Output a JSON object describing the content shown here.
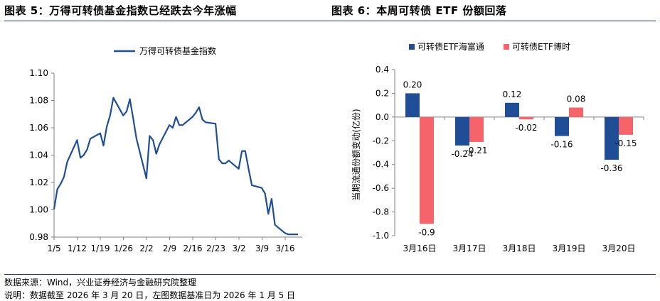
{
  "titles": {
    "left": "图表 5：万得可转债基金指数已经跌去今年涨幅",
    "right": "图表 6：本周可转债 ETF 份额回落"
  },
  "footer": {
    "source": "数据来源：Wind，兴业证券经济与金融研究院整理",
    "note": "说明：数据截至 2026 年 3 月 20 日，左图数据基准日为 2026 年 1 月 5 日"
  },
  "colors": {
    "line": "#1f4e96",
    "bar1": "#1f4e96",
    "bar2": "#f4646a",
    "rule": "#1f3864"
  },
  "chart_data": [
    {
      "type": "line",
      "title": "",
      "legend": [
        "万得可转债基金指数"
      ],
      "xlabel": "",
      "ylabel": "",
      "ylim": [
        0.98,
        1.1
      ],
      "yticks": [
        0.98,
        1.0,
        1.02,
        1.04,
        1.06,
        1.08,
        1.1
      ],
      "ytick_labels": [
        "0.98",
        "1.00",
        "1.02",
        "1.04",
        "1.06",
        "1.08",
        "1.10"
      ],
      "xticks": [
        "1/5",
        "1/12",
        "1/19",
        "1/26",
        "2/2",
        "2/9",
        "2/16",
        "2/23",
        "3/2",
        "3/9",
        "3/16"
      ],
      "x_start": "1/5",
      "x_end": "3/20",
      "series": [
        {
          "name": "万得可转债基金指数",
          "x": [
            0,
            1,
            2,
            3,
            4,
            7,
            8,
            9,
            10,
            11,
            14,
            15,
            16,
            17,
            18,
            21,
            22,
            23,
            24,
            25,
            28,
            29,
            30,
            31,
            32,
            35,
            36,
            37,
            38,
            39,
            42,
            43,
            44,
            45,
            46,
            49,
            50,
            51,
            52,
            53,
            56,
            57,
            58,
            59,
            60,
            63,
            64,
            65,
            66,
            67,
            70,
            71,
            72,
            73,
            74
          ],
          "values": [
            1.0005,
            1.015,
            1.019,
            1.024,
            1.035,
            1.051,
            1.038,
            1.04,
            1.044,
            1.052,
            1.056,
            1.047,
            1.061,
            1.069,
            1.082,
            1.069,
            1.072,
            1.081,
            1.067,
            1.052,
            1.023,
            1.054,
            1.051,
            1.041,
            1.048,
            1.062,
            1.06,
            1.068,
            1.062,
            1.062,
            1.068,
            1.071,
            1.075,
            1.066,
            1.064,
            1.063,
            1.037,
            1.034,
            1.034,
            1.036,
            1.03,
            1.043,
            1.043,
            1.03,
            1.018,
            1.016,
            1.012,
            0.997,
            1.008,
            0.989,
            0.983,
            0.982,
            0.982,
            0.982,
            0.982
          ]
        }
      ]
    },
    {
      "type": "bar",
      "title": "",
      "ylabel": "当期流通份额变动(亿份)",
      "xlabel": "",
      "ylim": [
        -1.0,
        0.4
      ],
      "yticks": [
        -1.0,
        -0.8,
        -0.6,
        -0.4,
        -0.2,
        0.0,
        0.2,
        0.4
      ],
      "ytick_labels": [
        "-1.0",
        "-0.8",
        "-0.6",
        "-0.4",
        "-0.2",
        "0.0",
        "0.2",
        "0.4"
      ],
      "categories": [
        "3月16日",
        "3月17日",
        "3月18日",
        "3月19日",
        "3月20日"
      ],
      "series": [
        {
          "name": "可转债ETF海富通",
          "values": [
            0.2,
            -0.24,
            0.12,
            -0.16,
            -0.36
          ],
          "labels": [
            "0.20",
            "-0.24",
            "0.12",
            "-0.16",
            "-0.36"
          ]
        },
        {
          "name": "可转债ETF博时",
          "values": [
            -0.9,
            -0.21,
            -0.02,
            0.08,
            -0.15
          ],
          "labels": [
            "-0.9",
            "-0.21",
            "-0.02",
            "0.08",
            "-0.15"
          ]
        }
      ]
    }
  ]
}
